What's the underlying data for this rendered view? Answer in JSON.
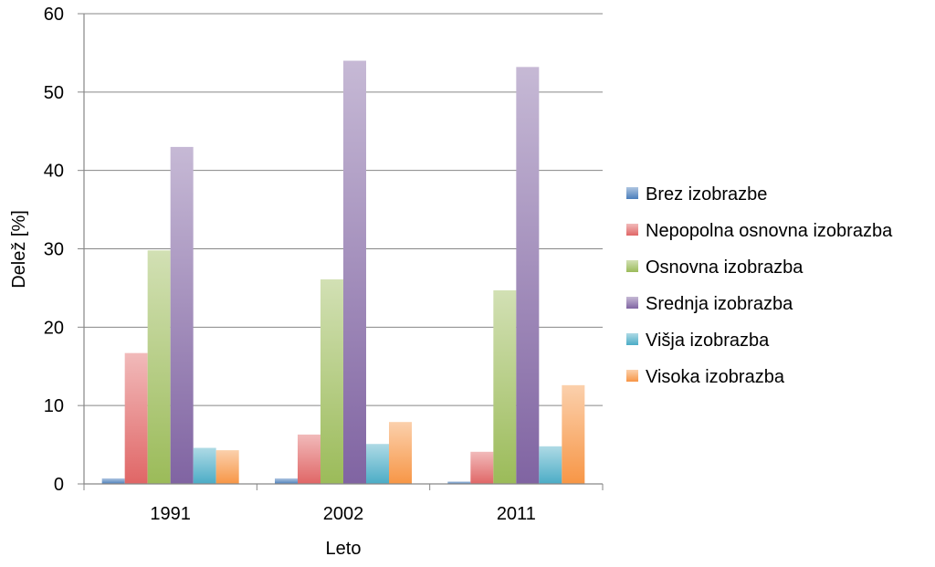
{
  "chart_data": {
    "type": "bar",
    "categories": [
      "1991",
      "2002",
      "2011"
    ],
    "series": [
      {
        "name": "Brez izobrazbe",
        "values": [
          0.7,
          0.7,
          0.3
        ],
        "color": "#4a7ebb"
      },
      {
        "name": "Nepopolna osnovna izobrazba",
        "values": [
          16.7,
          6.3,
          4.1
        ],
        "color": "#e06666"
      },
      {
        "name": "Osnovna izobrazba",
        "values": [
          29.8,
          26.1,
          24.7
        ],
        "color": "#9bbb59"
      },
      {
        "name": "Srednja izobrazba",
        "values": [
          43.0,
          54.0,
          53.2
        ],
        "color": "#8064a2"
      },
      {
        "name": "Višja izobrazba",
        "values": [
          4.6,
          5.1,
          4.8
        ],
        "color": "#4bacc6"
      },
      {
        "name": "Visoka izobrazba",
        "values": [
          4.3,
          7.9,
          12.6
        ],
        "color": "#f79646"
      }
    ],
    "xlabel": "Leto",
    "ylabel": "Delež [%]",
    "ylim": [
      0,
      60
    ],
    "yticks": [
      "0",
      "10",
      "20",
      "30",
      "40",
      "50",
      "60"
    ],
    "grid": true,
    "legend_position": "right"
  }
}
